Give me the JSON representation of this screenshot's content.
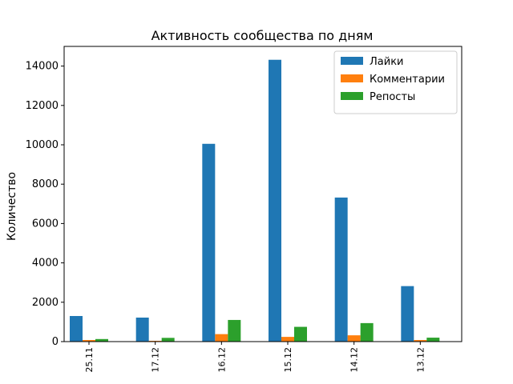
{
  "chart_data": {
    "type": "bar",
    "title": "Активность сообщества по дням",
    "xlabel": "",
    "ylabel": "Количество",
    "categories": [
      "25.11",
      "17.12",
      "16.12",
      "15.12",
      "14.12",
      "13.12"
    ],
    "series": [
      {
        "name": "Лайки",
        "color": "#1f77b4",
        "values": [
          1300,
          1220,
          10050,
          14320,
          7320,
          2820
        ]
      },
      {
        "name": "Комментарии",
        "color": "#ff7f0e",
        "values": [
          80,
          40,
          380,
          240,
          320,
          80
        ]
      },
      {
        "name": "Репосты",
        "color": "#2ca02c",
        "values": [
          130,
          190,
          1100,
          750,
          940,
          200
        ]
      }
    ],
    "ylim": [
      0,
      15000
    ],
    "yticks": [
      0,
      2000,
      4000,
      6000,
      8000,
      10000,
      12000,
      14000
    ],
    "grid": false,
    "legend_position": "top-right"
  }
}
